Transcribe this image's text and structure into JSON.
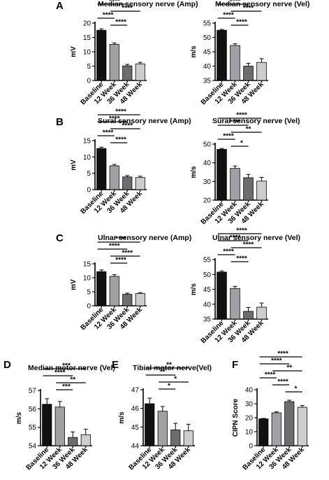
{
  "colors": {
    "bar_fills": [
      "#111111",
      "#a1a1a5",
      "#6d6d70",
      "#cdcdcf"
    ],
    "axis": "#000000"
  },
  "chart_data": [
    {
      "type": "bar",
      "panel": "A",
      "title": "Median sensory nerve (Amp)",
      "ylabel": "mV",
      "categories": [
        "Baseline",
        "12 Week",
        "36 Week",
        "48 Week"
      ],
      "values": [
        17.5,
        12.6,
        5.1,
        5.8
      ],
      "errors": [
        0.5,
        0.5,
        0.5,
        0.5
      ],
      "ylim": [
        0,
        20
      ],
      "yticks": [
        "0",
        "5",
        "10",
        "15",
        "20"
      ],
      "comparisons": [
        {
          "from": 0,
          "to": 3,
          "label": "****"
        },
        {
          "from": 0,
          "to": 2,
          "label": "****"
        },
        {
          "from": 0,
          "to": 1,
          "label": "****"
        },
        {
          "from": 1,
          "to": 3,
          "label": "****"
        },
        {
          "from": 1,
          "to": 2,
          "label": "****"
        }
      ]
    },
    {
      "type": "bar",
      "panel": "",
      "title": "Median sensory nerve (Vel)",
      "ylabel": "m/s",
      "categories": [
        "Baseline",
        "12 Week",
        "36 Week",
        "48 Week"
      ],
      "values": [
        52.5,
        47.2,
        40.0,
        41.3
      ],
      "errors": [
        0.3,
        0.6,
        1.0,
        1.3
      ],
      "ylim": [
        35,
        55
      ],
      "yticks": [
        "35",
        "40",
        "45",
        "50",
        "55"
      ],
      "comparisons": [
        {
          "from": 0,
          "to": 3,
          "label": "****"
        },
        {
          "from": 0,
          "to": 2,
          "label": "****"
        },
        {
          "from": 0,
          "to": 1,
          "label": "****"
        },
        {
          "from": 1,
          "to": 3,
          "label": "****"
        },
        {
          "from": 1,
          "to": 2,
          "label": "****"
        }
      ]
    },
    {
      "type": "bar",
      "panel": "B",
      "title": "Sural sensory nerve (Amp)",
      "ylabel": "mV",
      "categories": [
        "Baseline",
        "12 Week",
        "36 Week",
        "48 Week"
      ],
      "values": [
        12.6,
        7.3,
        3.9,
        3.7
      ],
      "errors": [
        0.4,
        0.4,
        0.4,
        0.4
      ],
      "ylim": [
        0,
        15
      ],
      "yticks": [
        "0",
        "5",
        "10",
        "15"
      ],
      "comparisons": [
        {
          "from": 0,
          "to": 3,
          "label": "****"
        },
        {
          "from": 0,
          "to": 2,
          "label": "****"
        },
        {
          "from": 0,
          "to": 1,
          "label": "****"
        },
        {
          "from": 1,
          "to": 3,
          "label": "****"
        },
        {
          "from": 1,
          "to": 2,
          "label": "****"
        }
      ]
    },
    {
      "type": "bar",
      "panel": "",
      "title": "Sural sensory nerve (Vel)",
      "ylabel": "m/s",
      "categories": [
        "Baseline",
        "12 Week",
        "36 Week",
        "48 Week"
      ],
      "values": [
        47.2,
        37.0,
        32.0,
        30.2
      ],
      "errors": [
        0.5,
        1.3,
        1.8,
        2.0
      ],
      "ylim": [
        20,
        50
      ],
      "yticks": [
        "20",
        "30",
        "40",
        "50"
      ],
      "comparisons": [
        {
          "from": 0,
          "to": 3,
          "label": "****"
        },
        {
          "from": 0,
          "to": 2,
          "label": "****"
        },
        {
          "from": 0,
          "to": 1,
          "label": "****"
        },
        {
          "from": 1,
          "to": 3,
          "label": "**"
        },
        {
          "from": 1,
          "to": 2,
          "label": "*"
        }
      ]
    },
    {
      "type": "bar",
      "panel": "C",
      "title": "Ulnar sensory nerve (Amp)",
      "ylabel": "mV",
      "categories": [
        "Baseline",
        "12 Week",
        "36 Week",
        "48 Week"
      ],
      "values": [
        12.2,
        10.5,
        4.1,
        4.4
      ],
      "errors": [
        0.6,
        0.6,
        0.4,
        0.3
      ],
      "ylim": [
        0,
        15
      ],
      "yticks": [
        "0",
        "5",
        "10",
        "15"
      ],
      "comparisons": [
        {
          "from": 0,
          "to": 3,
          "label": "****"
        },
        {
          "from": 0,
          "to": 2,
          "label": "****"
        },
        {
          "from": 1,
          "to": 3,
          "label": "****"
        },
        {
          "from": 1,
          "to": 2,
          "label": "****"
        }
      ]
    },
    {
      "type": "bar",
      "panel": "",
      "title": "Ulnar sensory nerve (Vel)",
      "ylabel": "m/s",
      "categories": [
        "Baseline",
        "12 Week",
        "36 Week",
        "48 Week"
      ],
      "values": [
        50.8,
        45.3,
        37.6,
        39.0
      ],
      "errors": [
        0.4,
        0.7,
        1.3,
        1.4
      ],
      "ylim": [
        35,
        55
      ],
      "yticks": [
        "35",
        "40",
        "45",
        "50",
        "55"
      ],
      "comparisons": [
        {
          "from": 0,
          "to": 3,
          "label": "****"
        },
        {
          "from": 0,
          "to": 2,
          "label": "****"
        },
        {
          "from": 0,
          "to": 1,
          "label": "****"
        },
        {
          "from": 1,
          "to": 3,
          "label": "****"
        },
        {
          "from": 1,
          "to": 2,
          "label": "****"
        }
      ]
    },
    {
      "type": "bar",
      "panel": "D",
      "title": "Median motor nerve (Vel)",
      "ylabel": "m/s",
      "categories": [
        "Baseline",
        "12 Week",
        "36 Week",
        "48 Week"
      ],
      "values": [
        56.25,
        56.1,
        54.45,
        54.6
      ],
      "errors": [
        0.3,
        0.3,
        0.3,
        0.3
      ],
      "ylim": [
        54,
        57
      ],
      "yticks": [
        "54",
        "55",
        "56",
        "57"
      ],
      "comparisons": [
        {
          "from": 0,
          "to": 3,
          "label": "***"
        },
        {
          "from": 0,
          "to": 2,
          "label": "****"
        },
        {
          "from": 1,
          "to": 3,
          "label": "**"
        },
        {
          "from": 1,
          "to": 2,
          "label": "***"
        }
      ]
    },
    {
      "type": "bar",
      "panel": "E",
      "title": "Tibial motor nerve(Vel)",
      "ylabel": "m/s",
      "categories": [
        "Baseline",
        "12 Week",
        "36 Week",
        "48 Week"
      ],
      "values": [
        46.25,
        45.85,
        44.85,
        44.8
      ],
      "errors": [
        0.3,
        0.25,
        0.35,
        0.35
      ],
      "ylim": [
        44,
        47
      ],
      "yticks": [
        "44",
        "45",
        "46",
        "47"
      ],
      "comparisons": [
        {
          "from": 0,
          "to": 3,
          "label": "**"
        },
        {
          "from": 0,
          "to": 2,
          "label": "**"
        },
        {
          "from": 1,
          "to": 3,
          "label": "*"
        },
        {
          "from": 1,
          "to": 2,
          "label": "*"
        }
      ]
    },
    {
      "type": "bar",
      "panel": "F",
      "title": "",
      "ylabel": "CIPN Score",
      "categories": [
        "Baseline",
        "12 Week",
        "36 Week",
        "48 Week"
      ],
      "values": [
        19.2,
        23.5,
        31.5,
        27.5
      ],
      "errors": [
        0.3,
        0.7,
        1.0,
        1.2
      ],
      "ylim": [
        0,
        40
      ],
      "yticks": [
        "0",
        "10",
        "20",
        "30",
        "40"
      ],
      "comparisons": [
        {
          "from": 0,
          "to": 3,
          "label": "****"
        },
        {
          "from": 0,
          "to": 2,
          "label": "****"
        },
        {
          "from": 0,
          "to": 1,
          "label": "****"
        },
        {
          "from": 1,
          "to": 3,
          "label": "**"
        },
        {
          "from": 1,
          "to": 2,
          "label": "****"
        },
        {
          "from": 2,
          "to": 3,
          "label": "*"
        }
      ]
    }
  ]
}
